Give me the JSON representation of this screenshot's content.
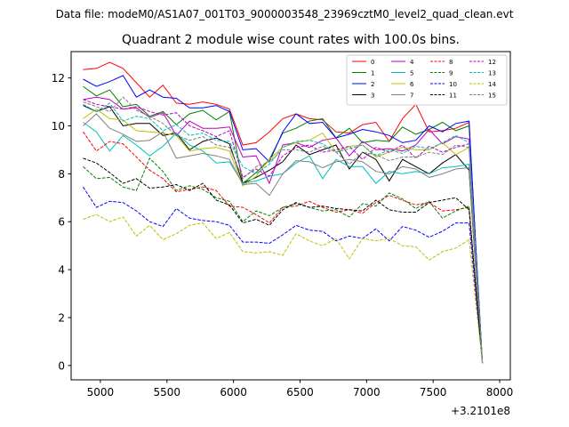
{
  "chart_data": {
    "type": "line",
    "suptitle": "Data file: modeM0/AS1A07_001T03_9000003548_23969cztM0_level2_quad_clean.evt",
    "title": "Quadrant 2 module wise count rates with 100.0s bins.",
    "xlabel": "",
    "ylabel": "",
    "x_offset_label": "+3.2101e8",
    "xlim": [
      4780,
      8080
    ],
    "ylim": [
      -0.6,
      13.1
    ],
    "x_ticks": [
      5000,
      5500,
      6000,
      6500,
      7000,
      7500,
      8000
    ],
    "y_ticks": [
      0,
      2,
      4,
      6,
      8,
      10,
      12
    ],
    "grid": false,
    "legend_position": "top-right",
    "legend_columns": 4,
    "x": [
      4870,
      4970,
      5070,
      5170,
      5270,
      5370,
      5470,
      5570,
      5670,
      5770,
      5870,
      5970,
      6070,
      6170,
      6270,
      6370,
      6470,
      6570,
      6670,
      6770,
      6870,
      6970,
      7070,
      7170,
      7270,
      7370,
      7470,
      7570,
      7670,
      7770,
      7820,
      7870
    ],
    "series": [
      {
        "name": "0",
        "color": "#ff0000",
        "dash": "solid",
        "values": [
          12.35,
          12.4,
          12.65,
          12.4,
          11.8,
          11.2,
          11.7,
          10.95,
          10.9,
          11.0,
          10.9,
          10.7,
          9.2,
          9.3,
          9.75,
          10.3,
          10.5,
          10.3,
          10.25,
          9.75,
          9.7,
          10.05,
          10.15,
          9.35,
          10.3,
          10.9,
          9.75,
          9.8,
          9.9,
          10.15,
          5.0,
          0.1
        ]
      },
      {
        "name": "1",
        "color": "#008000",
        "dash": "solid",
        "values": [
          11.65,
          11.25,
          11.5,
          10.8,
          10.9,
          10.4,
          10.6,
          10.05,
          10.5,
          10.65,
          10.25,
          10.6,
          7.6,
          8.05,
          8.6,
          9.7,
          9.9,
          10.2,
          10.3,
          9.5,
          9.9,
          9.3,
          9.4,
          9.35,
          9.95,
          9.65,
          9.85,
          10.15,
          9.8,
          10.0,
          5.0,
          0.1
        ]
      },
      {
        "name": "2",
        "color": "#0000ff",
        "dash": "solid",
        "values": [
          11.95,
          11.65,
          11.85,
          12.1,
          11.2,
          11.5,
          11.2,
          11.15,
          10.75,
          10.75,
          10.85,
          10.6,
          9.0,
          9.05,
          8.5,
          9.75,
          10.5,
          10.1,
          10.15,
          9.5,
          9.65,
          9.85,
          9.75,
          9.6,
          9.3,
          9.4,
          10.0,
          9.75,
          10.1,
          10.2,
          5.0,
          0.1
        ]
      },
      {
        "name": "3",
        "color": "#000000",
        "dash": "solid",
        "values": [
          10.85,
          10.6,
          10.8,
          10.0,
          10.1,
          10.1,
          9.6,
          9.7,
          9.0,
          9.35,
          9.5,
          9.25,
          7.6,
          7.85,
          8.15,
          8.5,
          9.2,
          8.8,
          9.0,
          9.2,
          8.2,
          8.9,
          8.6,
          7.7,
          8.6,
          8.3,
          8.0,
          8.45,
          8.8,
          8.15,
          4.0,
          0.1
        ]
      },
      {
        "name": "4",
        "color": "#bf00bf",
        "dash": "solid",
        "values": [
          11.1,
          11.2,
          11.1,
          10.7,
          10.75,
          10.35,
          10.55,
          9.6,
          10.2,
          9.9,
          9.9,
          9.95,
          8.7,
          8.75,
          7.6,
          9.2,
          9.3,
          9.1,
          9.4,
          9.5,
          8.75,
          9.35,
          9.0,
          9.05,
          8.95,
          9.2,
          9.85,
          9.25,
          9.55,
          9.45,
          4.5,
          0.1
        ]
      },
      {
        "name": "5",
        "color": "#00bfbf",
        "dash": "solid",
        "values": [
          10.15,
          9.75,
          8.95,
          9.6,
          9.2,
          8.75,
          9.15,
          9.7,
          9.2,
          8.95,
          8.45,
          8.5,
          7.6,
          7.7,
          7.9,
          8.0,
          8.45,
          8.75,
          7.8,
          8.6,
          8.3,
          8.3,
          7.6,
          8.1,
          8.0,
          8.1,
          8.0,
          8.25,
          8.3,
          8.4,
          4.2,
          0.1
        ]
      },
      {
        "name": "6",
        "color": "#bfbf00",
        "dash": "solid",
        "values": [
          10.3,
          10.7,
          10.3,
          10.25,
          9.8,
          9.75,
          9.7,
          9.6,
          8.95,
          9.05,
          9.1,
          8.95,
          7.5,
          7.9,
          8.6,
          9.1,
          9.3,
          9.4,
          9.7,
          8.9,
          9.15,
          9.2,
          8.7,
          8.9,
          9.1,
          9.0,
          9.0,
          9.3,
          8.8,
          9.1,
          4.5,
          0.1
        ]
      },
      {
        "name": "7",
        "color": "#808080",
        "dash": "solid",
        "values": [
          10.0,
          10.5,
          9.9,
          9.65,
          9.35,
          9.4,
          9.75,
          8.65,
          8.75,
          8.85,
          8.75,
          8.6,
          7.55,
          7.6,
          7.1,
          8.0,
          8.55,
          8.5,
          8.25,
          8.5,
          8.6,
          8.5,
          8.1,
          8.0,
          8.3,
          8.2,
          7.85,
          8.0,
          8.2,
          8.25,
          4.0,
          0.1
        ]
      },
      {
        "name": "8",
        "color": "#ff0000",
        "dash": "dashed",
        "values": [
          9.75,
          8.95,
          9.35,
          9.25,
          8.7,
          8.15,
          7.8,
          7.25,
          7.35,
          7.45,
          7.3,
          6.65,
          6.6,
          6.3,
          5.95,
          6.6,
          6.65,
          6.85,
          6.6,
          6.4,
          6.5,
          6.35,
          6.8,
          7.1,
          6.9,
          6.7,
          6.8,
          6.45,
          6.5,
          6.6,
          3.3,
          0.1
        ]
      },
      {
        "name": "9",
        "color": "#008000",
        "dash": "dashed",
        "values": [
          8.3,
          7.8,
          7.85,
          7.45,
          7.3,
          8.65,
          8.1,
          7.3,
          7.5,
          7.35,
          7.0,
          6.85,
          6.0,
          6.45,
          6.25,
          6.6,
          6.75,
          6.6,
          6.45,
          6.5,
          6.2,
          6.75,
          6.65,
          7.2,
          6.95,
          6.55,
          6.85,
          6.15,
          6.45,
          6.65,
          3.3,
          0.1
        ]
      },
      {
        "name": "10",
        "color": "#0000ff",
        "dash": "dashed",
        "values": [
          7.45,
          6.6,
          6.85,
          6.8,
          6.45,
          6.0,
          5.8,
          6.55,
          6.15,
          6.05,
          6.0,
          5.85,
          5.15,
          5.15,
          5.1,
          5.45,
          5.85,
          5.65,
          5.6,
          5.2,
          5.4,
          5.3,
          5.7,
          5.2,
          5.8,
          5.65,
          5.35,
          5.6,
          5.95,
          5.95,
          3.0,
          0.1
        ]
      },
      {
        "name": "11",
        "color": "#000000",
        "dash": "dashed",
        "values": [
          8.65,
          8.45,
          8.05,
          7.6,
          7.8,
          7.4,
          7.45,
          7.55,
          7.3,
          7.6,
          6.9,
          6.7,
          5.95,
          6.1,
          5.85,
          6.5,
          6.8,
          6.6,
          6.65,
          6.55,
          6.5,
          6.45,
          6.9,
          6.5,
          6.4,
          6.4,
          6.8,
          6.9,
          7.0,
          6.5,
          3.3,
          0.1
        ]
      },
      {
        "name": "12",
        "color": "#bf00bf",
        "dash": "dashed",
        "values": [
          11.1,
          10.9,
          10.8,
          10.7,
          10.8,
          10.6,
          10.45,
          10.55,
          10.0,
          9.8,
          9.55,
          9.8,
          7.85,
          8.2,
          7.9,
          8.75,
          9.1,
          9.2,
          8.9,
          9.0,
          9.15,
          8.6,
          9.1,
          8.9,
          9.2,
          8.65,
          9.15,
          8.9,
          9.1,
          9.25,
          4.6,
          0.1
        ]
      },
      {
        "name": "13",
        "color": "#00bfbf",
        "dash": "dashed",
        "values": [
          10.9,
          10.6,
          10.95,
          10.2,
          10.4,
          10.3,
          9.8,
          10.05,
          9.6,
          9.7,
          9.4,
          9.35,
          8.3,
          8.0,
          8.4,
          9.1,
          9.35,
          9.4,
          9.25,
          8.9,
          9.05,
          9.2,
          8.75,
          9.0,
          8.85,
          9.15,
          9.05,
          9.3,
          9.6,
          9.3,
          4.7,
          0.1
        ]
      },
      {
        "name": "14",
        "color": "#bfbf00",
        "dash": "dashed",
        "values": [
          6.1,
          6.3,
          6.0,
          6.2,
          5.4,
          5.85,
          5.25,
          5.5,
          5.85,
          5.95,
          5.3,
          5.55,
          4.75,
          4.7,
          4.75,
          4.6,
          5.5,
          5.2,
          5.0,
          5.3,
          4.45,
          5.3,
          5.2,
          5.3,
          5.0,
          4.95,
          4.4,
          4.75,
          4.9,
          5.25,
          2.6,
          0.1
        ]
      },
      {
        "name": "15",
        "color": "#808080",
        "dash": "dashed",
        "values": [
          11.0,
          10.8,
          10.6,
          11.2,
          10.65,
          10.4,
          10.1,
          9.6,
          9.4,
          9.55,
          9.2,
          9.1,
          7.8,
          8.3,
          8.5,
          9.0,
          9.0,
          8.9,
          9.15,
          8.9,
          8.4,
          8.9,
          8.8,
          8.55,
          8.7,
          8.7,
          8.9,
          8.8,
          9.2,
          9.1,
          4.55,
          0.1
        ]
      }
    ]
  }
}
